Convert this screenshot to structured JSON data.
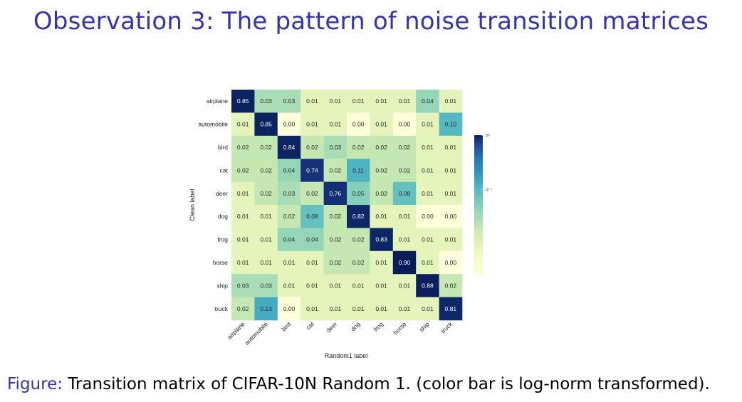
{
  "slide": {
    "title": "Observation 3: The pattern of noise transition matrices"
  },
  "caption": {
    "label": "Figure:",
    "text": "Transition matrix of CIFAR-10N Random 1. (color bar is log-norm transformed)."
  },
  "colors": {
    "title": "#3333b3",
    "caption_label": "#3333b3",
    "colormap": "YlGnBu"
  },
  "chart_data": {
    "type": "heatmap",
    "title": "",
    "xlabel": "Random1 label",
    "ylabel": "Clean label",
    "x_categories": [
      "airplane",
      "automobile",
      "bird",
      "cat",
      "deer",
      "dog",
      "frog",
      "horse",
      "ship",
      "truck"
    ],
    "y_categories": [
      "airplane",
      "automobile",
      "bird",
      "cat",
      "deer",
      "dog",
      "frog",
      "horse",
      "ship",
      "truck"
    ],
    "values": [
      [
        0.85,
        0.03,
        0.03,
        0.01,
        0.01,
        0.01,
        0.01,
        0.01,
        0.04,
        0.01
      ],
      [
        0.01,
        0.85,
        0.0,
        0.01,
        0.01,
        0.0,
        0.01,
        0.0,
        0.01,
        0.1
      ],
      [
        0.02,
        0.02,
        0.84,
        0.02,
        0.03,
        0.02,
        0.02,
        0.02,
        0.01,
        0.01
      ],
      [
        0.02,
        0.02,
        0.04,
        0.74,
        0.02,
        0.11,
        0.02,
        0.02,
        0.01,
        0.01
      ],
      [
        0.01,
        0.02,
        0.03,
        0.02,
        0.76,
        0.05,
        0.02,
        0.08,
        0.01,
        0.01
      ],
      [
        0.01,
        0.01,
        0.02,
        0.08,
        0.02,
        0.82,
        0.01,
        0.01,
        0.0,
        0.0
      ],
      [
        0.01,
        0.01,
        0.04,
        0.04,
        0.02,
        0.02,
        0.83,
        0.01,
        0.01,
        0.01
      ],
      [
        0.01,
        0.01,
        0.01,
        0.01,
        0.02,
        0.02,
        0.01,
        0.9,
        0.01,
        0.0
      ],
      [
        0.03,
        0.03,
        0.01,
        0.01,
        0.01,
        0.01,
        0.01,
        0.01,
        0.88,
        0.02
      ],
      [
        0.02,
        0.13,
        0.0,
        0.01,
        0.01,
        0.01,
        0.01,
        0.01,
        0.01,
        0.81
      ]
    ],
    "value_format": "0.00",
    "colorbar": {
      "scale": "log",
      "ticks": [
        "10⁰",
        "10⁻¹"
      ]
    },
    "grid": false,
    "legend": "colorbar-right"
  }
}
